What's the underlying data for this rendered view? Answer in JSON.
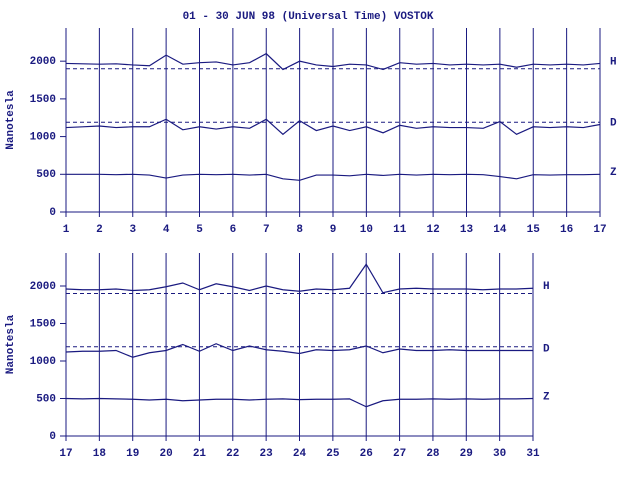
{
  "chart_data": [
    {
      "type": "line",
      "title": "01 - 30 JUN 98 (Universal Time) VOSTOK",
      "y_label": "Nanotesla",
      "x": [
        1,
        1.5,
        2,
        2.5,
        3,
        3.5,
        4,
        4.5,
        5,
        5.5,
        6,
        6.5,
        7,
        7.5,
        8,
        8.5,
        9,
        9.5,
        10,
        10.5,
        11,
        11.5,
        12,
        12.5,
        13,
        13.5,
        14,
        14.5,
        15,
        15.5,
        16,
        16.5,
        17
      ],
      "series": [
        {
          "name": "H",
          "color": "#1a1a80",
          "baseline": 1900,
          "values": [
            1970,
            1965,
            1960,
            1965,
            1950,
            1940,
            2080,
            1960,
            1980,
            1990,
            1950,
            1980,
            2100,
            1890,
            2000,
            1950,
            1930,
            1960,
            1950,
            1890,
            1980,
            1960,
            1970,
            1950,
            1960,
            1950,
            1960,
            1920,
            1960,
            1950,
            1960,
            1950,
            1970
          ]
        },
        {
          "name": "D",
          "color": "#1a1a80",
          "baseline": 1190,
          "values": [
            1120,
            1130,
            1140,
            1120,
            1130,
            1130,
            1230,
            1090,
            1130,
            1100,
            1130,
            1110,
            1230,
            1030,
            1210,
            1080,
            1140,
            1080,
            1130,
            1050,
            1150,
            1110,
            1130,
            1120,
            1120,
            1110,
            1200,
            1030,
            1130,
            1120,
            1130,
            1120,
            1160
          ]
        },
        {
          "name": "Z",
          "color": "#1a1a80",
          "values": [
            500,
            500,
            500,
            495,
            500,
            490,
            450,
            490,
            500,
            495,
            500,
            490,
            500,
            440,
            420,
            490,
            490,
            480,
            500,
            485,
            500,
            490,
            500,
            495,
            500,
            495,
            470,
            440,
            495,
            490,
            495,
            495,
            500
          ]
        }
      ],
      "xlim": [
        1,
        17
      ],
      "xticks": [
        1,
        2,
        3,
        4,
        5,
        6,
        7,
        8,
        9,
        10,
        11,
        12,
        13,
        14,
        15,
        16,
        17
      ],
      "ylim": [
        0,
        2440
      ],
      "yticks": [
        0,
        500,
        1000,
        1500,
        2000
      ],
      "grid": true
    },
    {
      "type": "line",
      "y_label": "Nanotesla",
      "x": [
        17,
        17.5,
        18,
        18.5,
        19,
        19.5,
        20,
        20.5,
        21,
        21.5,
        22,
        22.5,
        23,
        23.5,
        24,
        24.5,
        25,
        25.5,
        26,
        26.5,
        27,
        27.5,
        28,
        28.5,
        29,
        29.5,
        30,
        30.5,
        31
      ],
      "series": [
        {
          "name": "H",
          "color": "#1a1a80",
          "baseline": 1900,
          "values": [
            1960,
            1950,
            1950,
            1960,
            1940,
            1950,
            1990,
            2040,
            1950,
            2030,
            1990,
            1940,
            2000,
            1950,
            1930,
            1960,
            1950,
            1970,
            2290,
            1910,
            1960,
            1970,
            1960,
            1960,
            1960,
            1950,
            1960,
            1960,
            1970
          ]
        },
        {
          "name": "D",
          "color": "#1a1a80",
          "baseline": 1190,
          "values": [
            1120,
            1130,
            1130,
            1140,
            1050,
            1110,
            1140,
            1220,
            1130,
            1230,
            1140,
            1200,
            1150,
            1130,
            1100,
            1150,
            1140,
            1150,
            1200,
            1110,
            1160,
            1140,
            1140,
            1150,
            1140,
            1140,
            1140,
            1140,
            1140
          ]
        },
        {
          "name": "Z",
          "color": "#1a1a80",
          "values": [
            500,
            495,
            500,
            495,
            490,
            480,
            490,
            470,
            480,
            490,
            490,
            480,
            490,
            495,
            485,
            490,
            490,
            495,
            390,
            470,
            490,
            490,
            495,
            490,
            495,
            490,
            495,
            495,
            500
          ]
        }
      ],
      "xlim": [
        17,
        31
      ],
      "xticks": [
        17,
        18,
        19,
        20,
        21,
        22,
        23,
        24,
        25,
        26,
        27,
        28,
        29,
        30,
        31
      ],
      "ylim": [
        0,
        2440
      ],
      "yticks": [
        0,
        500,
        1000,
        1500,
        2000
      ],
      "grid": true
    }
  ]
}
